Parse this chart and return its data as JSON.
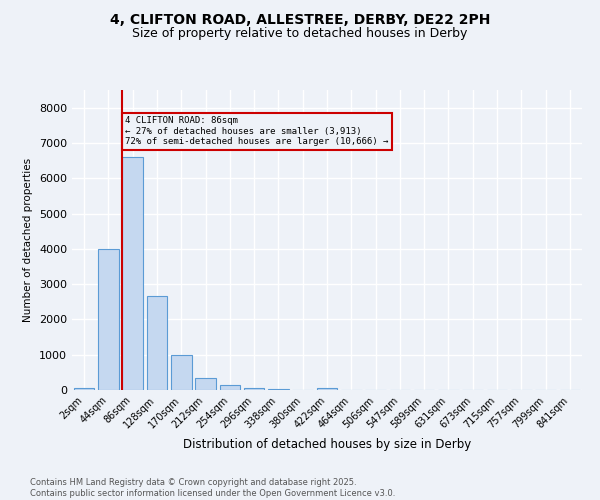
{
  "title1": "4, CLIFTON ROAD, ALLESTREE, DERBY, DE22 2PH",
  "title2": "Size of property relative to detached houses in Derby",
  "xlabel": "Distribution of detached houses by size in Derby",
  "ylabel": "Number of detached properties",
  "bin_labels": [
    "2sqm",
    "44sqm",
    "86sqm",
    "128sqm",
    "170sqm",
    "212sqm",
    "254sqm",
    "296sqm",
    "338sqm",
    "380sqm",
    "422sqm",
    "464sqm",
    "506sqm",
    "547sqm",
    "589sqm",
    "631sqm",
    "673sqm",
    "715sqm",
    "757sqm",
    "799sqm",
    "841sqm"
  ],
  "bar_values": [
    50,
    4000,
    6600,
    2650,
    1000,
    340,
    130,
    60,
    40,
    10,
    50,
    0,
    0,
    0,
    0,
    0,
    0,
    0,
    0,
    0,
    0
  ],
  "bar_color": "#c5d8f0",
  "bar_edge_color": "#5b9bd5",
  "red_line_index": 2,
  "red_line_color": "#cc0000",
  "annotation_box_color": "#cc0000",
  "annotation_text_line1": "4 CLIFTON ROAD: 86sqm",
  "annotation_text_line2": "← 27% of detached houses are smaller (3,913)",
  "annotation_text_line3": "72% of semi-detached houses are larger (10,666) →",
  "ylim": [
    0,
    8500
  ],
  "yticks": [
    0,
    1000,
    2000,
    3000,
    4000,
    5000,
    6000,
    7000,
    8000
  ],
  "footer_line1": "Contains HM Land Registry data © Crown copyright and database right 2025.",
  "footer_line2": "Contains public sector information licensed under the Open Government Licence v3.0.",
  "bg_color": "#eef2f8",
  "grid_color": "#ffffff"
}
